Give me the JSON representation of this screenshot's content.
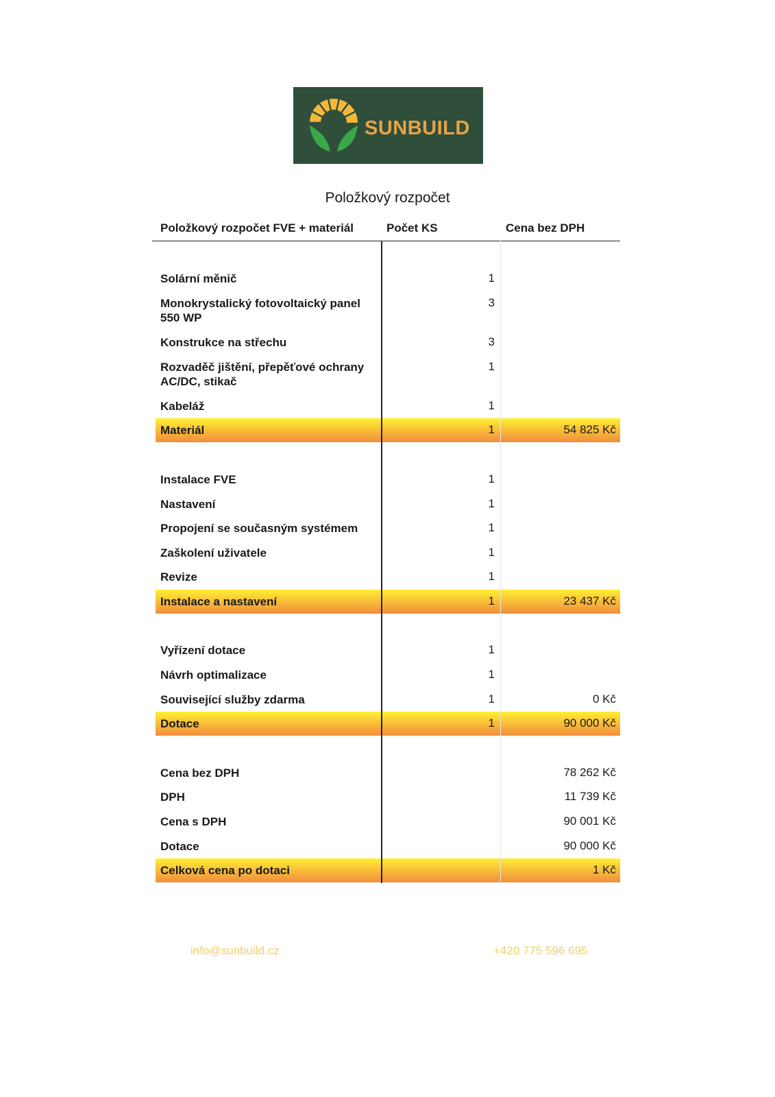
{
  "logo": {
    "text": "SUNBUILD"
  },
  "title": "Položkový rozpočet",
  "headers": [
    "Položkový rozpočet FVE + materiál",
    "Počet KS",
    "Cena bez DPH"
  ],
  "rows": [
    {
      "label": "Solární měnič",
      "qty": "1",
      "price": ""
    },
    {
      "label": "Monokrystalický fotovoltaický panel 550 WP",
      "qty": "3",
      "price": ""
    },
    {
      "label": "Konstrukce na střechu",
      "qty": "3",
      "price": ""
    },
    {
      "label": "Rozvaděč jištění, přepěťové ochrany AC/DC, stikač",
      "qty": "1",
      "price": ""
    },
    {
      "label": "Kabeláž",
      "qty": "1",
      "price": ""
    },
    {
      "label": "Materiál",
      "qty": "1",
      "price": "54 825 Kč",
      "total": true
    },
    {
      "label": "Instalace FVE",
      "qty": "1",
      "price": ""
    },
    {
      "label": "Nastavení",
      "qty": "1",
      "price": ""
    },
    {
      "label": "Propojení se současným systémem",
      "qty": "1",
      "price": ""
    },
    {
      "label": "Zaškolení uživatele",
      "qty": "1",
      "price": ""
    },
    {
      "label": "Revize",
      "qty": "1",
      "price": ""
    },
    {
      "label": "Instalace a nastavení",
      "qty": "1",
      "price": "23 437 Kč",
      "total": true
    },
    {
      "label": "Vyřízení dotace",
      "qty": "1",
      "price": ""
    },
    {
      "label": "Návrh optimalizace",
      "qty": "1",
      "price": ""
    },
    {
      "label": "Související služby zdarma",
      "qty": "1",
      "price": "0 Kč"
    },
    {
      "label": "Dotace",
      "qty": "1",
      "price": "90 000 Kč",
      "total": true
    },
    {
      "label": "Cena bez DPH",
      "qty": "",
      "price": "78 262 Kč"
    },
    {
      "label": "DPH",
      "qty": "",
      "price": "11 739 Kč"
    },
    {
      "label": "Cena s DPH",
      "qty": "",
      "price": "90 001 Kč"
    },
    {
      "label": "Dotace",
      "qty": "",
      "price": "90 000 Kč"
    },
    {
      "label": "Celková cena po dotaci",
      "qty": "",
      "price": "1 Kč",
      "total": true
    }
  ],
  "footer": {
    "email": "info@sunbuild.cz",
    "phone": "+420 775 596 695"
  },
  "colors": {
    "logo_bg": "#2f4f3a",
    "brand": "#e9a24a",
    "band_top": "#fff033",
    "band_bottom": "#f28d3e",
    "footer": "#f3d06a"
  }
}
